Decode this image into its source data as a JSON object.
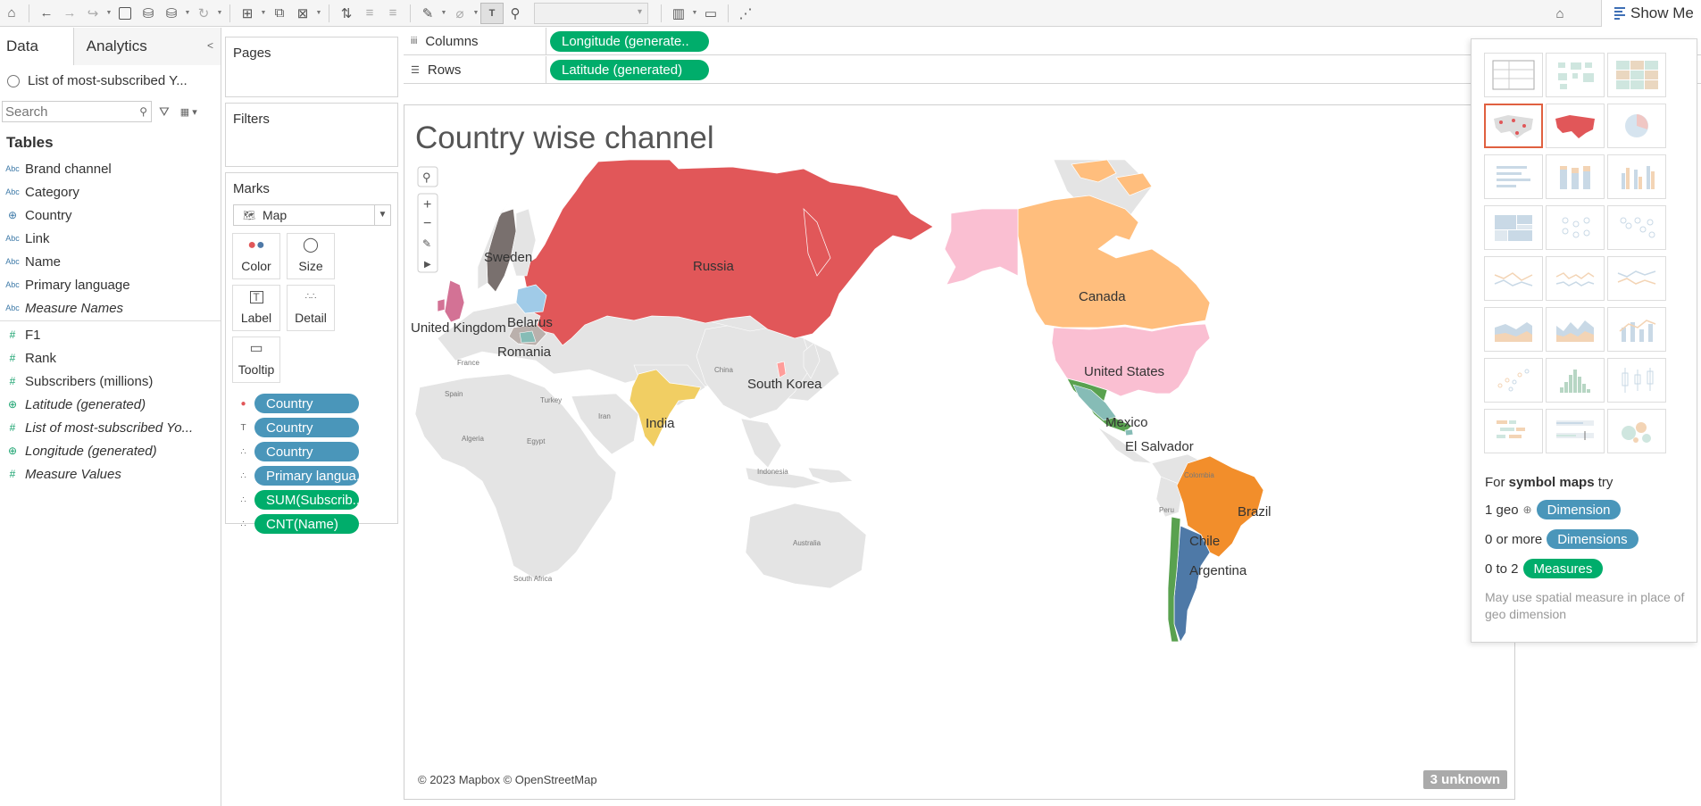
{
  "toolbar": {
    "show_me_label": "Show Me"
  },
  "data_pane": {
    "tab_data": "Data",
    "tab_analytics": "Analytics",
    "datasource": "List of most-subscribed Y...",
    "search_placeholder": "Search",
    "tables_title": "Tables",
    "dimensions": [
      {
        "type": "Abc",
        "name": "Brand channel"
      },
      {
        "type": "Abc",
        "name": "Category"
      },
      {
        "type": "globe",
        "name": "Country"
      },
      {
        "type": "Abc",
        "name": "Link"
      },
      {
        "type": "Abc",
        "name": "Name"
      },
      {
        "type": "Abc",
        "name": "Primary language"
      },
      {
        "type": "Abc",
        "name": "Measure Names"
      }
    ],
    "measures": [
      {
        "type": "#",
        "name": "F1"
      },
      {
        "type": "#",
        "name": "Rank"
      },
      {
        "type": "#",
        "name": "Subscribers (millions)"
      },
      {
        "type": "globe",
        "name": "Latitude (generated)"
      },
      {
        "type": "#",
        "name": "List of most-subscribed Yo..."
      },
      {
        "type": "globe",
        "name": "Longitude (generated)"
      },
      {
        "type": "#",
        "name": "Measure Values"
      }
    ]
  },
  "cards": {
    "pages": "Pages",
    "filters": "Filters",
    "marks": "Marks",
    "mark_type": "Map",
    "buttons": [
      "Color",
      "Size",
      "Label",
      "Detail",
      "Tooltip"
    ],
    "pills": [
      {
        "icon": "color-icon",
        "label": "Country",
        "color": "blue"
      },
      {
        "icon": "label-icon",
        "label": "Country",
        "color": "blue"
      },
      {
        "icon": "detail-icon",
        "label": "Country",
        "color": "blue"
      },
      {
        "icon": "detail-icon",
        "label": "Primary langua..",
        "color": "blue"
      },
      {
        "icon": "detail-icon",
        "label": "SUM(Subscrib..",
        "color": "green"
      },
      {
        "icon": "detail-icon",
        "label": "CNT(Name)",
        "color": "green"
      }
    ]
  },
  "shelves": {
    "columns_label": "Columns",
    "columns_pill": "Longitude (generate..",
    "rows_label": "Rows",
    "rows_pill": "Latitude (generated)"
  },
  "viz": {
    "title": "Country wise channel",
    "attribution": "© 2023 Mapbox © OpenStreetMap",
    "unknown_badge": "3 unknown",
    "country_labels": [
      "Russia",
      "Sweden",
      "Belarus",
      "United Kingdom",
      "Romania",
      "South Korea",
      "India",
      "Canada",
      "United States",
      "Mexico",
      "El Salvador",
      "Brazil",
      "Chile",
      "Argentina"
    ],
    "base_labels": [
      "France",
      "Spain",
      "Algeria",
      "Egypt",
      "Turkey",
      "Iran",
      "China",
      "Indonesia",
      "Australia",
      "South Africa",
      "Colombia",
      "Peru"
    ],
    "colors": {
      "Russia": "#e15759",
      "Sweden": "#79706e",
      "Belarus": "#a0cbe8",
      "United Kingdom": "#d37295",
      "Romania": "#bab0ac",
      "South Korea": "#ff9d9a",
      "India": "#f1ce63",
      "Canada": "#ffbe7d",
      "United States": "#fabfd2",
      "Mexico": "#59a14f",
      "El Salvador": "#86bcb6",
      "Brazil": "#f28e2b",
      "Chile": "#59a14f",
      "Argentina": "#4e79a7",
      "base_land": "#e4e4e4",
      "ocean": "#ffffff"
    }
  },
  "show_me": {
    "hint_prefix": "For",
    "hint_bold": "symbol maps",
    "hint_suffix": "try",
    "rows": [
      {
        "prefix": "1 geo",
        "pill": "Dimension",
        "color": "blue"
      },
      {
        "prefix": "0 or more",
        "pill": "Dimensions",
        "color": "blue"
      },
      {
        "prefix": "0 to 2",
        "pill": "Measures",
        "color": "green"
      }
    ],
    "note": "May use spatial measure in place of geo dimension"
  }
}
